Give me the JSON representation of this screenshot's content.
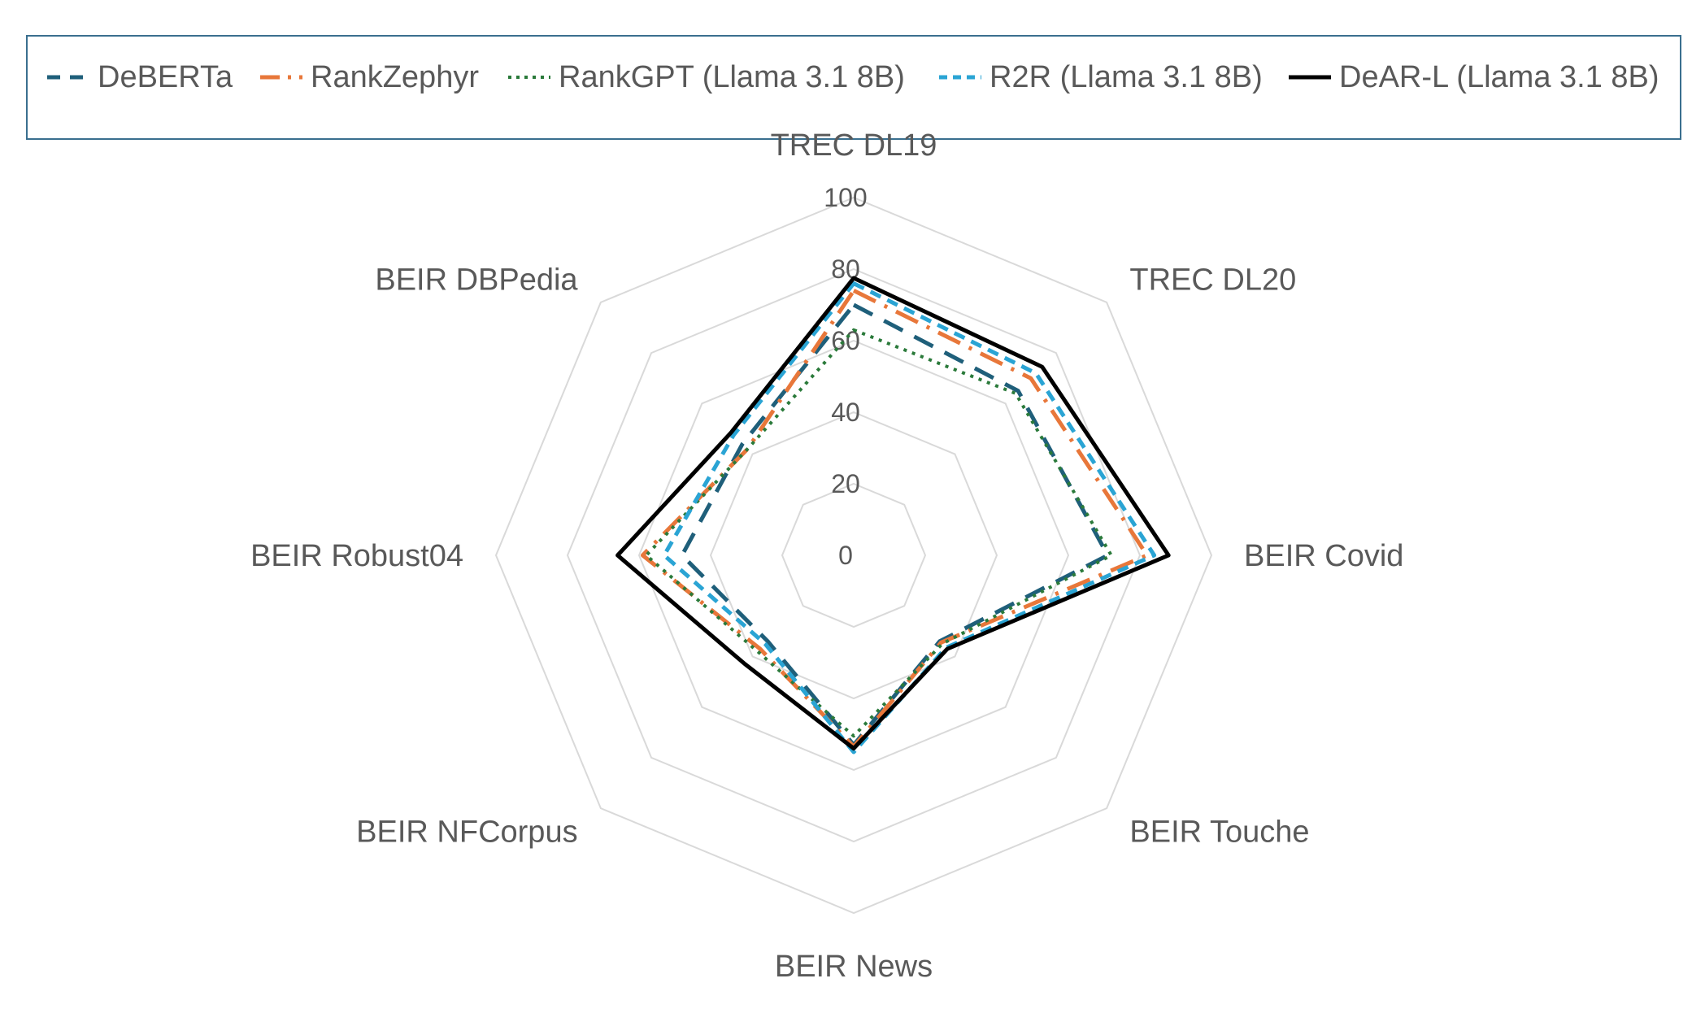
{
  "chart_data": {
    "type": "radar",
    "title": "",
    "axes": [
      "TREC DL19",
      "TREC DL20",
      "BEIR Covid",
      "BEIR Touche",
      "BEIR News",
      "BEIR NFCorpus",
      "BEIR Robust04",
      "BEIR DBPedia"
    ],
    "rlim": [
      0,
      100
    ],
    "ticks": [
      0,
      20,
      40,
      60,
      80,
      100
    ],
    "grid": true,
    "legend_position": "top",
    "series": [
      {
        "name": "DeBERTa",
        "style": "dashed",
        "color": "#1f5f7a",
        "values": [
          70.0,
          65.0,
          71.0,
          34.0,
          53.0,
          34.0,
          48.0,
          44.0
        ]
      },
      {
        "name": "RankZephyr",
        "style": "dash-dot",
        "color": "#e8773a",
        "values": [
          74.0,
          70.0,
          82.0,
          34.5,
          53.5,
          37.0,
          59.0,
          42.0
        ]
      },
      {
        "name": "RankGPT (Llama 3.1 8B)",
        "style": "dotted",
        "color": "#2a7a3a",
        "values": [
          63.0,
          64.0,
          72.0,
          35.0,
          50.5,
          38.0,
          58.0,
          42.0
        ]
      },
      {
        "name": "R2R (Llama 3.1 8B)",
        "style": "dashed-fine",
        "color": "#2aa4d4",
        "values": [
          76.0,
          72.0,
          84.0,
          36.5,
          55.0,
          35.0,
          53.0,
          47.5
        ]
      },
      {
        "name": "DeAR-L (Llama 3.1 8B)",
        "style": "solid",
        "color": "#000000",
        "values": [
          77.5,
          74.5,
          88.0,
          37.0,
          54.0,
          43.0,
          66.0,
          48.5
        ]
      }
    ]
  }
}
